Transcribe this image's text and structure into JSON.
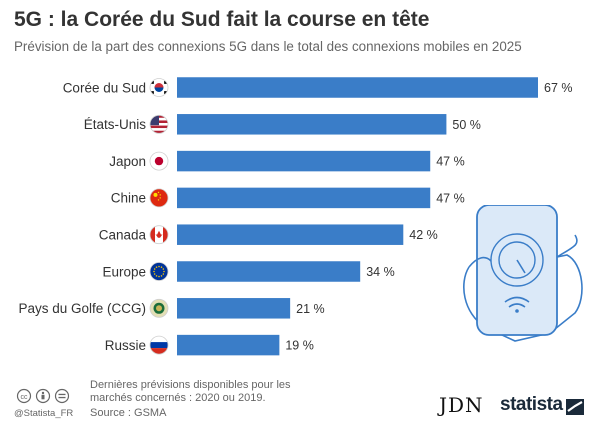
{
  "header": {
    "title": "5G : la Corée du Sud fait la course en tête",
    "subtitle": "Prévision de la part des connexions 5G dans le total des connexions mobiles en 2025"
  },
  "chart_data": {
    "type": "bar",
    "orientation": "horizontal",
    "title": "5G : la Corée du Sud fait la course en tête",
    "subtitle": "Prévision de la part des connexions 5G dans le total des connexions mobiles en 2025",
    "categories": [
      "Corée du Sud",
      "États-Unis",
      "Japon",
      "Chine",
      "Canada",
      "Europe",
      "Pays du Golfe (CCG)",
      "Russie"
    ],
    "values": [
      67,
      50,
      47,
      47,
      42,
      34,
      21,
      19
    ],
    "value_labels": [
      "67 %",
      "50 %",
      "47 %",
      "47 %",
      "42 %",
      "34 %",
      "21 %",
      "19 %"
    ],
    "flags": [
      "south-korea-flag-icon",
      "usa-flag-icon",
      "japan-flag-icon",
      "china-flag-icon",
      "canada-flag-icon",
      "eu-flag-icon",
      "gcc-flag-icon",
      "russia-flag-icon"
    ],
    "unit": "%",
    "xlim": [
      0,
      67
    ],
    "bar_color": "#3a7dc8",
    "grid": false
  },
  "footer": {
    "note": "Dernières prévisions disponibles pour les marchés concernés : 2020 ou 2019.",
    "source": "Source : GSMA",
    "handle": "@Statista_FR",
    "license_icons": [
      "cc-icon",
      "by-icon",
      "nd-icon"
    ]
  },
  "logos": {
    "jdn": "JDN",
    "statista": "statista"
  }
}
